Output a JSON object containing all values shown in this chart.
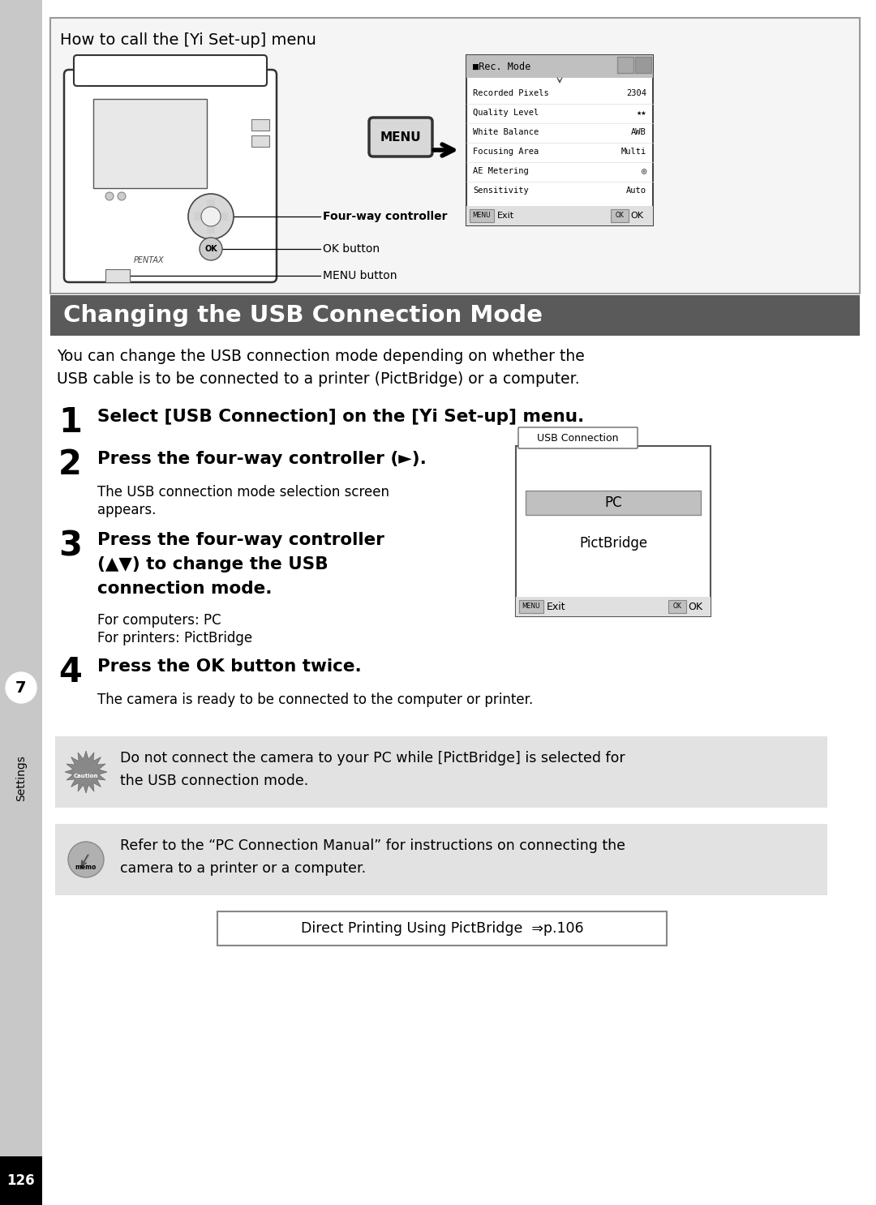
{
  "page_bg": "#ffffff",
  "sidebar_bg": "#000000",
  "page_num": "126",
  "top_box_title": "How to call the [Yi Set-up] menu",
  "section_title": "Changing the USB Connection Mode",
  "section_title_bg": "#5a5a5a",
  "section_title_color": "#ffffff",
  "intro_line1": "You can change the USB connection mode depending on whether the",
  "intro_line2": "USB cable is to be connected to a printer (PictBridge) or a computer.",
  "step1_text": "Select [USB Connection] on the [Yi Set-up] menu.",
  "step2_text": "Press the four-way controller (►).",
  "step2_sub": "The USB connection mode selection screen\nappears.",
  "step3_text_line1": "Press the four-way controller",
  "step3_text_line2": "(▲▼) to change the USB",
  "step3_text_line3": "connection mode.",
  "step3_sub1": "For computers: PC",
  "step3_sub2": "For printers: PictBridge",
  "step4_text": "Press the OK button twice.",
  "step4_sub": "The camera is ready to be connected to the computer or printer.",
  "caution_bg": "#e2e2e2",
  "caution_text_line1": "Do not connect the camera to your PC while [PictBridge] is selected for",
  "caution_text_line2": "the USB connection mode.",
  "memo_text_line1": "Refer to the “PC Connection Manual” for instructions on connecting the",
  "memo_text_line2": "camera to a printer or a computer.",
  "link_text": "Direct Printing Using PictBridge  ⇒p.106",
  "rec_mode_items": [
    [
      "Recorded Pixels",
      "2304"
    ],
    [
      "Quality Level",
      "★★"
    ],
    [
      "White Balance",
      "AWB"
    ],
    [
      "Focusing Area",
      "Multi"
    ],
    [
      "AE Metering",
      "◎"
    ],
    [
      "Sensitivity",
      "Auto"
    ]
  ],
  "label_four_way": "Four-way controller",
  "label_ok": "OK button",
  "label_menu": "MENU button"
}
